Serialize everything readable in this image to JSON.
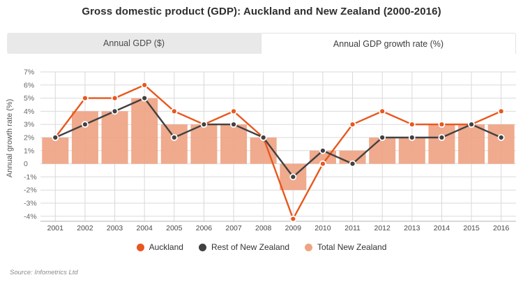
{
  "title": "Gross domestic product (GDP): Auckland and New Zealand (2000-2016)",
  "tabs": [
    {
      "label": "Annual GDP ($)",
      "active": false
    },
    {
      "label": "Annual GDP growth rate (%)",
      "active": true
    }
  ],
  "source": "Source: Infometrics Ltd",
  "chart_data": {
    "type": "combo-bar-line",
    "title": "",
    "xlabel": "",
    "ylabel": "Annual growth rate (%)",
    "categories": [
      "2001",
      "2002",
      "2003",
      "2004",
      "2005",
      "2006",
      "2007",
      "2008",
      "2009",
      "2010",
      "2011",
      "2012",
      "2013",
      "2014",
      "2015",
      "2016"
    ],
    "series": [
      {
        "name": "Auckland",
        "type": "line",
        "color": "#e8571d",
        "values": [
          2,
          5,
          5,
          6,
          4,
          3,
          4,
          2,
          -4.2,
          0,
          3,
          4,
          3,
          3,
          3,
          4
        ]
      },
      {
        "name": "Rest of New Zealand",
        "type": "line",
        "color": "#414141",
        "values": [
          2,
          3,
          4,
          5,
          2,
          3,
          3,
          2,
          -1,
          1,
          0,
          2,
          2,
          2,
          3,
          2
        ]
      },
      {
        "name": "Total New Zealand",
        "type": "bar",
        "color": "#efa383",
        "values": [
          2,
          4,
          4,
          5,
          3,
          3,
          3,
          2,
          -2,
          1,
          1,
          2,
          2,
          3,
          3,
          3
        ]
      }
    ],
    "yticks": [
      7,
      6,
      5,
      4,
      3,
      2,
      1,
      0,
      -1,
      -2,
      -3,
      -4
    ],
    "ytick_labels": [
      "7%",
      "6%",
      "5%",
      "4%",
      "3%",
      "2%",
      "1%",
      "0",
      "-1%",
      "-2%",
      "-3%",
      "-4%"
    ],
    "ylim": [
      -4.6,
      7.5
    ],
    "grid": true,
    "legend_position": "bottom",
    "colors": {
      "gridline": "#d9d9d9",
      "axis_line": "#b3b3b3",
      "ytick_text": "#666666",
      "xtick_text": "#484848"
    }
  }
}
